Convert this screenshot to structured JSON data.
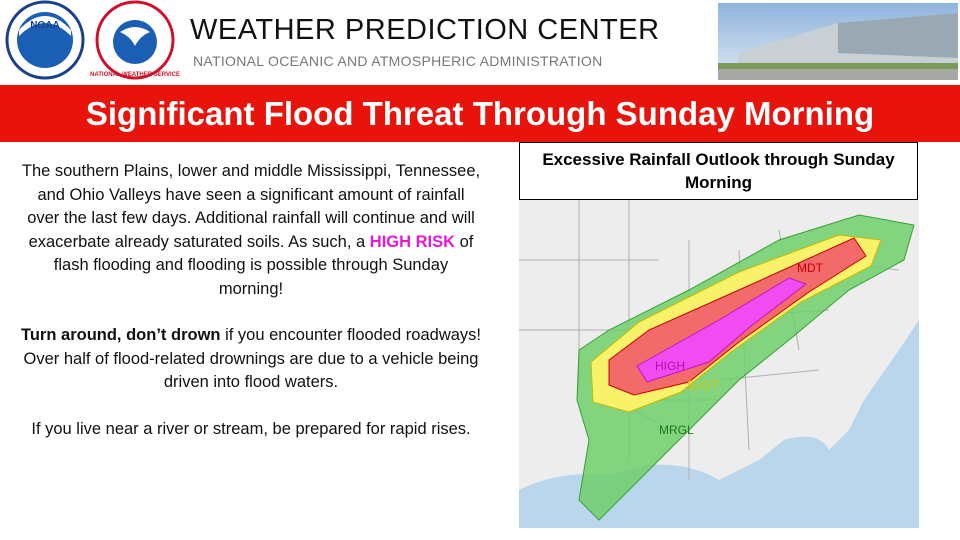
{
  "header": {
    "title": "WEATHER PREDICTION CENTER",
    "subtitle": "NATIONAL OCEANIC AND ATMOSPHERIC ADMINISTRATION",
    "logos": [
      "NOAA",
      "NATIONAL WEATHER SERVICE"
    ]
  },
  "banner": "Significant Flood Threat Through Sunday Morning",
  "body": {
    "paragraphs": [
      [
        "The southern Plains, lower and middle Mississippi, Tennessee, and Ohio Valleys have seen a significant amount of rainfall over the last few days.  Additional rainfall will continue and will exacerbate already saturated soils.  As such, a ",
        "HIGH RISK",
        " of flash flooding and flooding is possible through Sunday morning!"
      ],
      [
        "Turn around, don’t drown",
        " if you encounter flooded roadways! Over half of flood-related drownings are due to a vehicle being driven into flood waters."
      ],
      [
        "If you live near a river or stream, be prepared for rapid rises."
      ]
    ]
  },
  "map": {
    "title": "Excessive Rainfall Outlook through Sunday Morning",
    "labels": [
      "MDT",
      "HIGH",
      "SLGT",
      "MRGL"
    ]
  }
}
